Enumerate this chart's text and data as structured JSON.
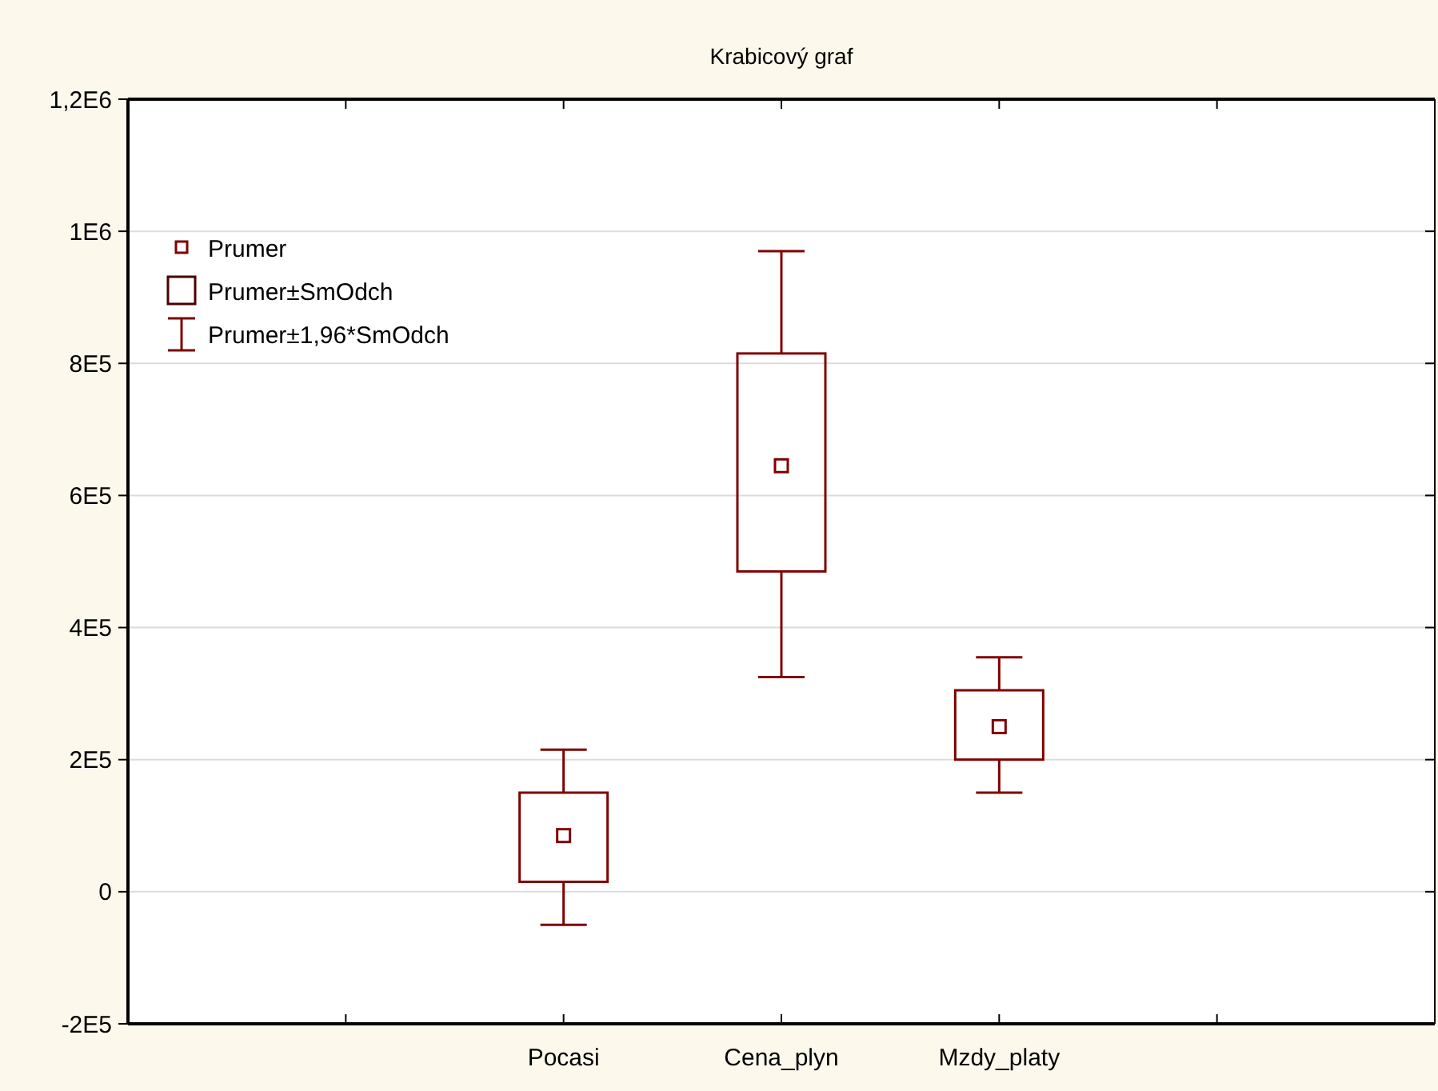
{
  "chart_data": {
    "type": "box",
    "title": "Krabicový graf",
    "categories": [
      null,
      "Pocasi",
      "Cena_plyn",
      "Mzdy_platy",
      null
    ],
    "boxes": [
      null,
      {
        "low": -50000,
        "q1": 15000,
        "median": 85000,
        "q3": 150000,
        "high": 215000
      },
      {
        "low": 325000,
        "q1": 485000,
        "median": 645000,
        "q3": 815000,
        "high": 970000
      },
      {
        "low": 150000,
        "q1": 200000,
        "median": 250000,
        "q3": 305000,
        "high": 355000
      },
      null
    ],
    "color": "#800000",
    "marker": "square",
    "ylim": [
      -200000,
      1200000
    ],
    "yticks": [
      {
        "value": -200000,
        "label": "-2E5"
      },
      0,
      {
        "value": 200000,
        "label": "2E5"
      },
      {
        "value": 400000,
        "label": "4E5"
      },
      {
        "value": 600000,
        "label": "6E5"
      },
      {
        "value": 800000,
        "label": "8E5"
      },
      {
        "value": 1000000,
        "label": "1E6"
      },
      {
        "value": 1200000,
        "label": "1,2E6"
      }
    ],
    "grid": "y",
    "annotations": [
      "Prumer",
      "Prumer±SmOdch",
      "Prumer±1,96*SmOdch"
    ]
  }
}
